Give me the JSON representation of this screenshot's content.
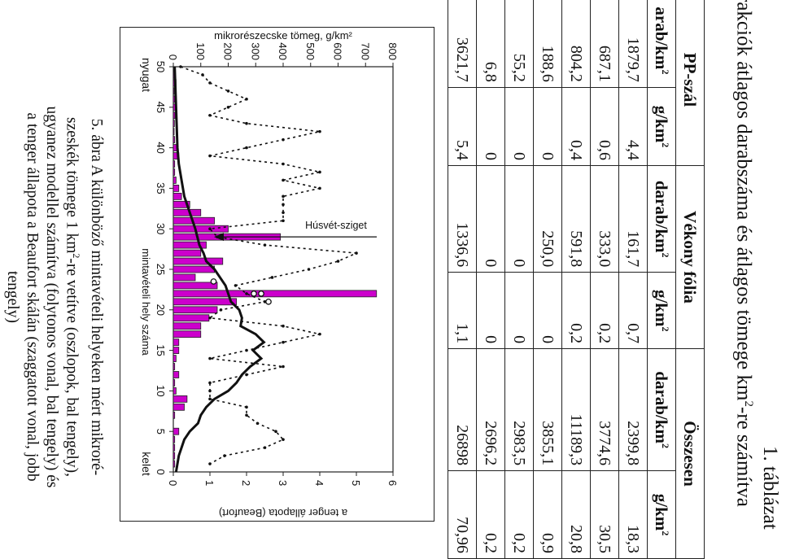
{
  "table": {
    "caption_title": "1. táblázat",
    "caption_line": "rakciók átlagos darabszáma és átlagos tömege km",
    "caption_sup": "2",
    "caption_tail": "-re számítva",
    "groups": [
      "PP-szál",
      "Vékony fólia",
      "Összesen"
    ],
    "col_count": "darab/km",
    "col_mass": "g/km",
    "col_sup": "2",
    "first_col_header": "arab/km",
    "rows": [
      [
        "1879,7",
        "4,4",
        "161,7",
        "0,7",
        "2399,8",
        "18,3"
      ],
      [
        "687,1",
        "0,6",
        "333,0",
        "0,2",
        "3774,6",
        "30,5"
      ],
      [
        "804,2",
        "0,4",
        "591,8",
        "0,2",
        "11189,3",
        "20,8"
      ],
      [
        "188,6",
        "0",
        "250,0",
        "0",
        "3855,1",
        "0,9"
      ],
      [
        "55,2",
        "0",
        "0",
        "0",
        "2983,5",
        "0,2"
      ],
      [
        "6,8",
        "0",
        "0",
        "0",
        "2696,2",
        "0,2"
      ],
      [
        "3621,7",
        "5,4",
        "1336,6",
        "1,1",
        "26898",
        "70,96"
      ]
    ]
  },
  "chart_data": {
    "type": "bar",
    "xlabel": "mintavételi hely száma",
    "ylabel_left": "mikrorészecske tömeg, g/km²",
    "ylabel_right": "a tenger állapota (Beaufort)",
    "x_end_left": "nyugat",
    "x_end_right": "kelet",
    "annotation": "Húsvét-sziget",
    "annotation_x": 29,
    "x_ticks": [
      "50",
      "45",
      "40",
      "35",
      "30",
      "25",
      "20",
      "15",
      "10",
      "5",
      "0"
    ],
    "y_left_ticks": [
      "0",
      "100",
      "200",
      "300",
      "400",
      "500",
      "600",
      "700",
      "800"
    ],
    "y_right_ticks": [
      "0",
      "1",
      "2",
      "3",
      "4",
      "5",
      "6"
    ],
    "ylim_left": [
      0,
      800
    ],
    "ylim_right": [
      0,
      6
    ],
    "xlim": [
      50,
      0
    ],
    "bar_color": "#cc00cc",
    "series": [
      {
        "kind": "bar",
        "x": [
          49,
          48,
          47,
          46,
          45,
          44,
          43,
          42,
          41,
          40,
          39,
          38,
          37,
          36,
          35,
          34,
          33,
          32,
          31,
          30,
          29,
          28,
          27,
          26,
          25,
          24,
          23,
          22,
          21,
          20,
          19,
          18,
          17,
          16,
          15,
          14,
          13,
          12,
          11,
          10,
          9,
          8,
          7,
          6,
          5,
          4,
          3,
          2,
          1
        ],
        "values": [
          5,
          10,
          3,
          5,
          8,
          6,
          4,
          3,
          5,
          15,
          20,
          5,
          5,
          10,
          20,
          30,
          60,
          100,
          150,
          200,
          390,
          120,
          100,
          180,
          150,
          80,
          160,
          740,
          230,
          160,
          130,
          100,
          100,
          20,
          20,
          10,
          5,
          20,
          5,
          10,
          50,
          40,
          5,
          0,
          20,
          5,
          5,
          5,
          5
        ]
      },
      {
        "kind": "line",
        "x": [
          50,
          45,
          40,
          38,
          36,
          34,
          32,
          30,
          28,
          27,
          26,
          25,
          24,
          23,
          22,
          21,
          20,
          19,
          18,
          17,
          16,
          15,
          14,
          13,
          12,
          11,
          10,
          9,
          8,
          7,
          6,
          5,
          4,
          3,
          2,
          1,
          0
        ],
        "values": [
          5,
          10,
          15,
          20,
          30,
          40,
          60,
          80,
          95,
          110,
          120,
          150,
          170,
          190,
          200,
          210,
          240,
          250,
          245,
          300,
          330,
          290,
          320,
          280,
          250,
          230,
          200,
          150,
          120,
          100,
          90,
          60,
          40,
          30,
          20,
          15,
          10
        ]
      },
      {
        "kind": "dashed",
        "x": [
          50,
          49,
          48,
          47,
          46,
          45,
          44,
          43,
          42,
          41,
          40,
          39,
          38,
          37,
          36,
          35,
          34,
          33,
          32,
          31,
          30,
          29,
          28,
          27,
          26,
          25,
          24,
          23,
          22,
          21,
          20,
          19,
          18,
          17,
          16,
          15,
          14,
          13,
          12,
          11,
          10,
          9,
          8,
          7,
          6,
          5,
          4,
          3,
          2,
          1
        ],
        "values": [
          0.2,
          0.8,
          1,
          1.5,
          2,
          1.5,
          1,
          2,
          4,
          3,
          2,
          1,
          3,
          4,
          3,
          4,
          3,
          3,
          3,
          3,
          1,
          1.2,
          2.5,
          5,
          4.5,
          3.7,
          2.7,
          1.7,
          2,
          2.5,
          1.3,
          1,
          3,
          4,
          3,
          2,
          1,
          3,
          2,
          1,
          1,
          1,
          2,
          2,
          2.3,
          2.8,
          3,
          2.5,
          1.4,
          1
        ]
      }
    ],
    "circle_markers": [
      {
        "x": 23.5,
        "value": 1.1
      },
      {
        "x": 22,
        "value": 2.2
      },
      {
        "x": 22,
        "value": 2.4
      },
      {
        "x": 21,
        "value": 2.6
      }
    ]
  },
  "figure_caption": {
    "line1": "5. ábra A különböző mintavételi helyeken mért mikroré-",
    "line2a": "szeskék tömege 1 km",
    "line2sup": "2",
    "line2b": "-re vetítve (oszlopok, bal tengely),",
    "line3": "ugyanez modellel számítva (folytonos vonal, bal tengely) és",
    "line4": "a tenger állapota a Beaufort skálán (szaggatott vonal, jobb",
    "line5": "tengely)"
  }
}
